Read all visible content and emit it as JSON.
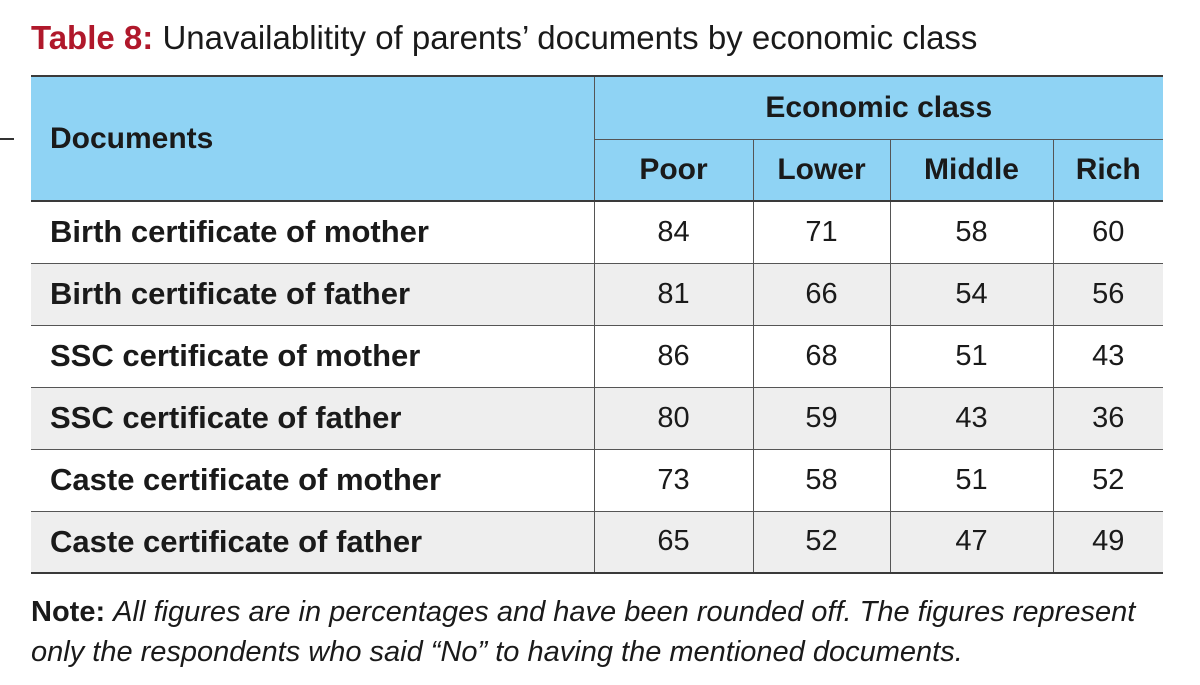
{
  "caption": {
    "label": "Table 8:",
    "title": "Unavailablitity of parents’ documents by economic class"
  },
  "table": {
    "row_header": "Documents",
    "group_header": "Economic class",
    "columns": [
      "Poor",
      "Lower",
      "Middle",
      "Rich"
    ],
    "rows": [
      {
        "label": "Birth certificate of mother",
        "values": [
          "84",
          "71",
          "58",
          "60"
        ]
      },
      {
        "label": "Birth certificate of father",
        "values": [
          "81",
          "66",
          "54",
          "56"
        ]
      },
      {
        "label": "SSC certificate of mother",
        "values": [
          "86",
          "68",
          "51",
          "43"
        ]
      },
      {
        "label": "SSC certificate of father",
        "values": [
          "80",
          "59",
          "43",
          "36"
        ]
      },
      {
        "label": "Caste certificate of mother",
        "values": [
          "73",
          "58",
          "51",
          "52"
        ]
      },
      {
        "label": "Caste certificate of father",
        "values": [
          "65",
          "52",
          "47",
          "49"
        ]
      }
    ]
  },
  "note": {
    "label": "Note:",
    "text": "All figures are in percentages and have been rounded off. The figures represent only the respondents who said “No” to having the mentioned documents."
  },
  "colors": {
    "caption_label": "#b0182b",
    "header_background": "#8fd3f4",
    "alt_row_background": "#eeeeee"
  }
}
